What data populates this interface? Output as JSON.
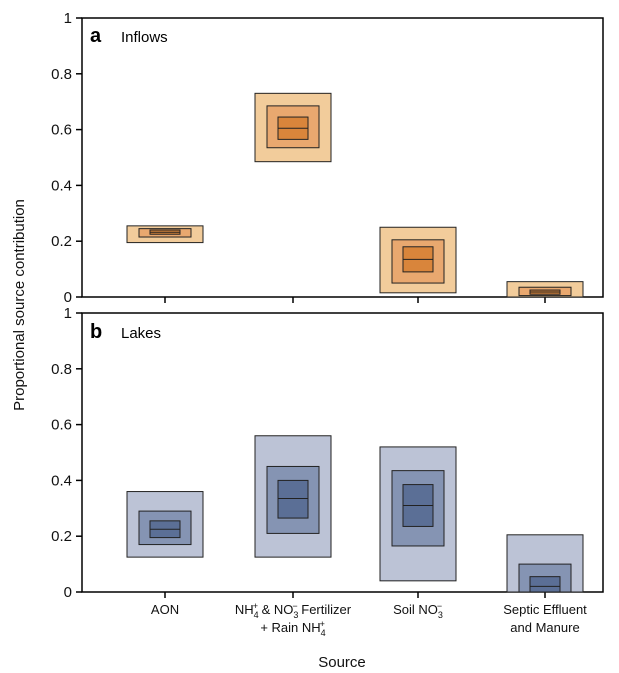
{
  "chart_data": {
    "type": "letter-value boxplot",
    "ylabel": "Proportional source contribution",
    "xlabel": "Source",
    "ylim": [
      0,
      1
    ],
    "yticks": [
      "0",
      "0.2",
      "0.4",
      "0.6",
      "0.8",
      "1"
    ],
    "categories": [
      {
        "line1": "AON",
        "line2": ""
      },
      {
        "line1": "NH4+ & NO3− Fertilizer",
        "line2": "+ Rain NH4+"
      },
      {
        "line1": "Soil NO3−",
        "line2": ""
      },
      {
        "line1": "Septic Effluent",
        "line2": "and Manure"
      }
    ],
    "panels": [
      {
        "label": "a",
        "title": "Inflows",
        "colors": [
          "#d9853b",
          "#e9a86f",
          "#f2cc9b"
        ],
        "boxes": [
          [
            [
              0.225,
              0.24
            ],
            [
              0.215,
              0.245
            ],
            [
              0.195,
              0.255
            ]
          ],
          [
            [
              0.565,
              0.645
            ],
            [
              0.535,
              0.685
            ],
            [
              0.485,
              0.73
            ]
          ],
          [
            [
              0.09,
              0.18
            ],
            [
              0.05,
              0.205
            ],
            [
              0.015,
              0.25
            ]
          ],
          [
            [
              0.01,
              0.025
            ],
            [
              0.005,
              0.035
            ],
            [
              0.0,
              0.055
            ]
          ]
        ],
        "medians": [
          0.232,
          0.605,
          0.135,
          0.018
        ]
      },
      {
        "label": "b",
        "title": "Lakes",
        "colors": [
          "#5b6f96",
          "#8594b3",
          "#bcc3d6"
        ],
        "boxes": [
          [
            [
              0.195,
              0.255
            ],
            [
              0.17,
              0.29
            ],
            [
              0.125,
              0.36
            ]
          ],
          [
            [
              0.265,
              0.4
            ],
            [
              0.21,
              0.45
            ],
            [
              0.125,
              0.56
            ]
          ],
          [
            [
              0.235,
              0.385
            ],
            [
              0.165,
              0.435
            ],
            [
              0.04,
              0.52
            ]
          ],
          [
            [
              0.0,
              0.055
            ],
            [
              0.0,
              0.1
            ],
            [
              0.0,
              0.205
            ]
          ]
        ],
        "medians": [
          0.225,
          0.335,
          0.31,
          0.02
        ]
      }
    ]
  }
}
